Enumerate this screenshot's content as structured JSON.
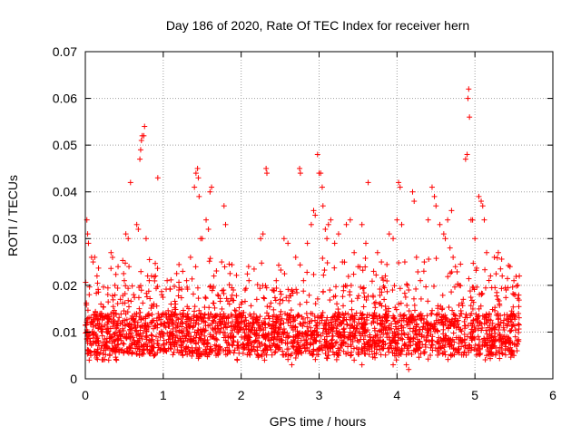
{
  "chart_data": {
    "type": "scatter",
    "title": "Day 186 of 2020, Rate Of TEC Index for receiver hern",
    "xlabel": "GPS time / hours",
    "ylabel": "ROTI / TECUs",
    "xlim": [
      0,
      6
    ],
    "ylim": [
      0,
      0.07
    ],
    "xticks": [
      0,
      1,
      2,
      3,
      4,
      5,
      6
    ],
    "yticks": [
      0,
      0.01,
      0.02,
      0.03,
      0.04,
      0.05,
      0.06,
      0.07
    ],
    "ytick_labels": [
      "0",
      "0.01",
      "0.02",
      "0.03",
      "0.04",
      "0.05",
      "0.06",
      "0.07"
    ],
    "grid": true,
    "marker": "plus",
    "color": "#ff0000",
    "x_extent": [
      0,
      5.57
    ],
    "points": [
      [
        0.02,
        0.034
      ],
      [
        0.03,
        0.031
      ],
      [
        0.04,
        0.029
      ],
      [
        0.05,
        0.018
      ],
      [
        0.03,
        0.006
      ],
      [
        0.05,
        0.004
      ],
      [
        0.08,
        0.026
      ],
      [
        0.1,
        0.025
      ],
      [
        0.12,
        0.026
      ],
      [
        0.15,
        0.022
      ],
      [
        0.2,
        0.016
      ],
      [
        0.22,
        0.013
      ],
      [
        0.25,
        0.007
      ],
      [
        0.3,
        0.004
      ],
      [
        0.33,
        0.027
      ],
      [
        0.38,
        0.02
      ],
      [
        0.42,
        0.024
      ],
      [
        0.45,
        0.017
      ],
      [
        0.5,
        0.021
      ],
      [
        0.52,
        0.031
      ],
      [
        0.55,
        0.03
      ],
      [
        0.56,
        0.024
      ],
      [
        0.58,
        0.042
      ],
      [
        0.62,
        0.018
      ],
      [
        0.66,
        0.033
      ],
      [
        0.68,
        0.032
      ],
      [
        0.7,
        0.047
      ],
      [
        0.71,
        0.049
      ],
      [
        0.72,
        0.051
      ],
      [
        0.73,
        0.052
      ],
      [
        0.75,
        0.052
      ],
      [
        0.76,
        0.054
      ],
      [
        0.78,
        0.03
      ],
      [
        0.8,
        0.022
      ],
      [
        0.82,
        0.021
      ],
      [
        0.85,
        0.022
      ],
      [
        0.88,
        0.016
      ],
      [
        0.9,
        0.022
      ],
      [
        0.93,
        0.043
      ],
      [
        0.98,
        0.018
      ],
      [
        1.05,
        0.021
      ],
      [
        1.1,
        0.016
      ],
      [
        1.2,
        0.019
      ],
      [
        1.25,
        0.023
      ],
      [
        1.3,
        0.021
      ],
      [
        1.35,
        0.026
      ],
      [
        1.4,
        0.041
      ],
      [
        1.42,
        0.044
      ],
      [
        1.44,
        0.045
      ],
      [
        1.45,
        0.043
      ],
      [
        1.46,
        0.039
      ],
      [
        1.48,
        0.03
      ],
      [
        1.5,
        0.03
      ],
      [
        1.55,
        0.034
      ],
      [
        1.58,
        0.032
      ],
      [
        1.6,
        0.04
      ],
      [
        1.62,
        0.041
      ],
      [
        1.65,
        0.022
      ],
      [
        1.7,
        0.018
      ],
      [
        1.75,
        0.025
      ],
      [
        1.78,
        0.037
      ],
      [
        1.8,
        0.033
      ],
      [
        1.85,
        0.016
      ],
      [
        1.9,
        0.019
      ],
      [
        1.95,
        0.013
      ],
      [
        2.0,
        0.016
      ],
      [
        2.05,
        0.019
      ],
      [
        2.1,
        0.021
      ],
      [
        2.15,
        0.011
      ],
      [
        2.2,
        0.017
      ],
      [
        2.25,
        0.03
      ],
      [
        2.28,
        0.031
      ],
      [
        2.32,
        0.045
      ],
      [
        2.33,
        0.044
      ],
      [
        2.4,
        0.019
      ],
      [
        2.45,
        0.021
      ],
      [
        2.5,
        0.017
      ],
      [
        2.55,
        0.03
      ],
      [
        2.6,
        0.029
      ],
      [
        2.65,
        0.019
      ],
      [
        2.7,
        0.026
      ],
      [
        2.75,
        0.045
      ],
      [
        2.76,
        0.044
      ],
      [
        2.8,
        0.021
      ],
      [
        2.85,
        0.029
      ],
      [
        2.9,
        0.033
      ],
      [
        2.93,
        0.036
      ],
      [
        2.95,
        0.035
      ],
      [
        2.98,
        0.048
      ],
      [
        3.0,
        0.044
      ],
      [
        3.02,
        0.044
      ],
      [
        3.04,
        0.041
      ],
      [
        3.05,
        0.037
      ],
      [
        3.08,
        0.032
      ],
      [
        3.1,
        0.03
      ],
      [
        3.12,
        0.033
      ],
      [
        3.15,
        0.034
      ],
      [
        3.2,
        0.029
      ],
      [
        3.25,
        0.031
      ],
      [
        3.3,
        0.025
      ],
      [
        3.35,
        0.033
      ],
      [
        3.4,
        0.034
      ],
      [
        3.45,
        0.027
      ],
      [
        3.5,
        0.024
      ],
      [
        3.55,
        0.033
      ],
      [
        3.6,
        0.029
      ],
      [
        3.63,
        0.042
      ],
      [
        3.7,
        0.023
      ],
      [
        3.75,
        0.027
      ],
      [
        3.8,
        0.025
      ],
      [
        3.85,
        0.022
      ],
      [
        3.9,
        0.031
      ],
      [
        3.95,
        0.03
      ],
      [
        4.0,
        0.034
      ],
      [
        4.02,
        0.042
      ],
      [
        4.04,
        0.041
      ],
      [
        4.06,
        0.033
      ],
      [
        4.1,
        0.025
      ],
      [
        4.15,
        0.019
      ],
      [
        4.2,
        0.04
      ],
      [
        4.22,
        0.038
      ],
      [
        4.25,
        0.026
      ],
      [
        4.3,
        0.021
      ],
      [
        4.35,
        0.025
      ],
      [
        4.4,
        0.034
      ],
      [
        4.45,
        0.041
      ],
      [
        4.48,
        0.039
      ],
      [
        4.5,
        0.037
      ],
      [
        4.55,
        0.033
      ],
      [
        4.6,
        0.031
      ],
      [
        4.62,
        0.03
      ],
      [
        4.65,
        0.034
      ],
      [
        4.68,
        0.028
      ],
      [
        4.7,
        0.036
      ],
      [
        4.72,
        0.026
      ],
      [
        4.75,
        0.024
      ],
      [
        4.8,
        0.02
      ],
      [
        4.85,
        0.017
      ],
      [
        4.88,
        0.047
      ],
      [
        4.9,
        0.048
      ],
      [
        4.91,
        0.06
      ],
      [
        4.92,
        0.062
      ],
      [
        4.93,
        0.056
      ],
      [
        4.95,
        0.034
      ],
      [
        4.97,
        0.034
      ],
      [
        5.0,
        0.03
      ],
      [
        5.05,
        0.039
      ],
      [
        5.08,
        0.038
      ],
      [
        5.1,
        0.037
      ],
      [
        5.12,
        0.034
      ],
      [
        5.15,
        0.027
      ],
      [
        5.2,
        0.022
      ],
      [
        5.25,
        0.026
      ],
      [
        5.3,
        0.027
      ],
      [
        5.35,
        0.022
      ],
      [
        5.4,
        0.019
      ],
      [
        5.45,
        0.024
      ],
      [
        5.5,
        0.021
      ],
      [
        5.52,
        0.018
      ],
      [
        5.55,
        0.02
      ],
      [
        5.57,
        0.022
      ],
      [
        5.56,
        0.008
      ],
      [
        5.54,
        0.006
      ],
      [
        5.5,
        0.005
      ],
      [
        0.15,
        0.005
      ],
      [
        0.4,
        0.004
      ],
      [
        1.95,
        0.004
      ],
      [
        2.3,
        0.004
      ],
      [
        2.65,
        0.003
      ],
      [
        3.45,
        0.004
      ],
      [
        3.55,
        0.003
      ],
      [
        3.95,
        0.003
      ],
      [
        4.15,
        0.002
      ],
      [
        4.12,
        0.003
      ],
      [
        1.25,
        0.005
      ],
      [
        1.85,
        0.006
      ],
      [
        3.25,
        0.005
      ],
      [
        5.15,
        0.005
      ],
      [
        5.3,
        0.006
      ]
    ]
  }
}
